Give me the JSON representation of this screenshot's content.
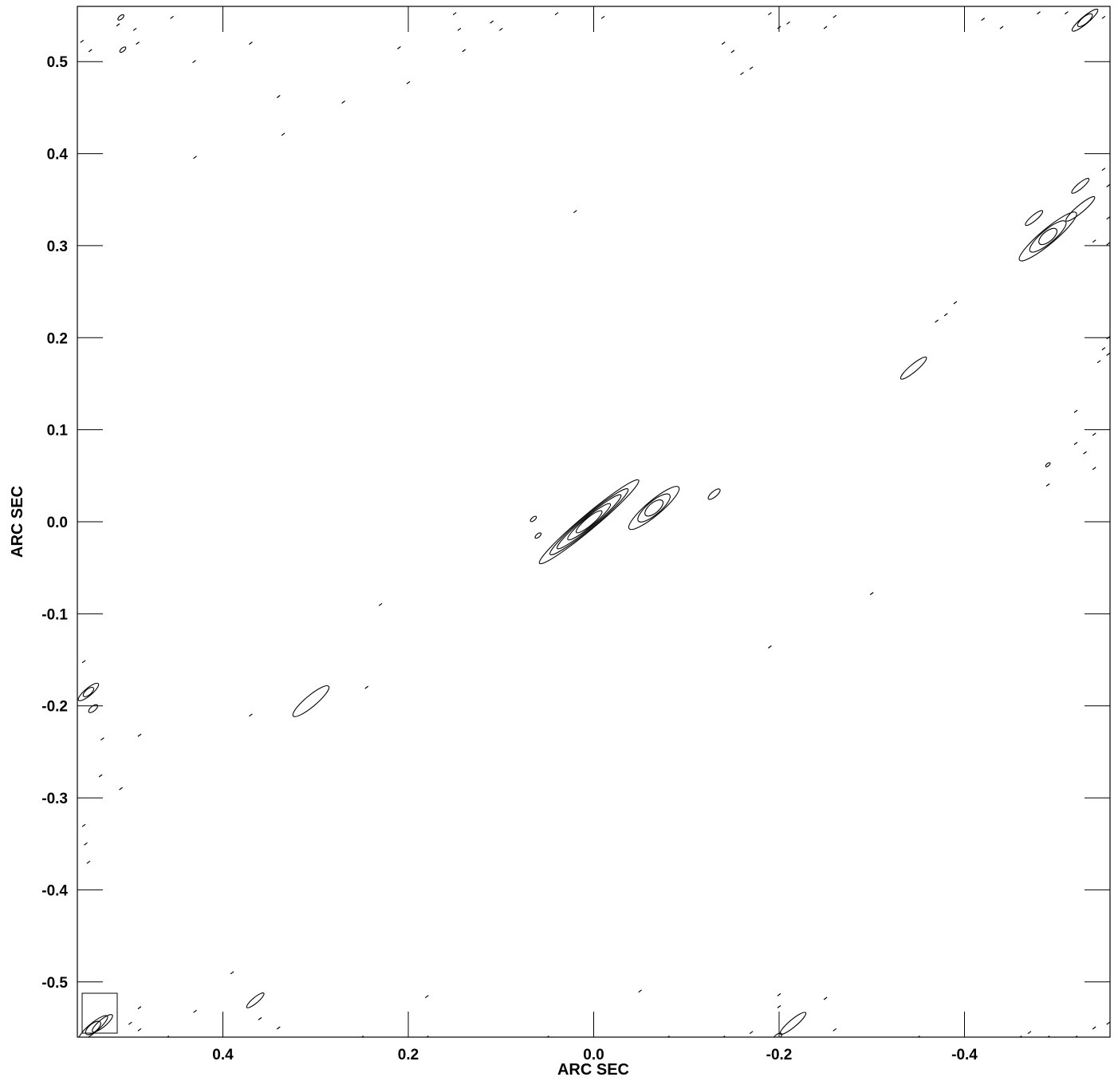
{
  "chart_data": {
    "type": "contour",
    "xlabel": "ARC SEC",
    "ylabel": "ARC SEC",
    "xlim": [
      0.557,
      -0.557
    ],
    "ylim": [
      -0.56,
      0.56
    ],
    "x_ticks": [
      0.4,
      0.2,
      0.0,
      -0.2,
      -0.4
    ],
    "x_tick_labels": [
      "0.4",
      "0.2",
      "0.0",
      "-0.2",
      "-0.4"
    ],
    "y_ticks": [
      0.5,
      0.4,
      0.3,
      0.2,
      0.1,
      0.0,
      -0.1,
      -0.2,
      -0.3,
      -0.4,
      -0.5
    ],
    "y_tick_labels": [
      "0.5",
      "0.4",
      "0.3",
      "0.2",
      "0.1",
      "0.0",
      "-0.1",
      "-0.2",
      "-0.3",
      "-0.4",
      "-0.5"
    ],
    "grid": false,
    "legend": "none",
    "line_color": "#000000",
    "features": [
      {
        "x": 0.005,
        "y": 0.0,
        "sizes": [
          0.07,
          0.055,
          0.045,
          0.03,
          0.018
        ],
        "width": 0.008,
        "angle": 40
      },
      {
        "x": -0.065,
        "y": 0.015,
        "sizes": [
          0.035,
          0.022,
          0.012
        ],
        "width": 0.008,
        "angle": 40
      },
      {
        "x": -0.13,
        "y": 0.03,
        "sizes": [
          0.008
        ],
        "width": 0.003,
        "angle": 40
      },
      {
        "x": 0.065,
        "y": 0.003,
        "sizes": [
          0.004
        ],
        "width": 0.003,
        "angle": 40
      },
      {
        "x": 0.06,
        "y": -0.015,
        "sizes": [
          0.004
        ],
        "width": 0.003,
        "angle": 40
      },
      {
        "x": 0.305,
        "y": -0.195,
        "sizes": [
          0.025
        ],
        "width": 0.006,
        "angle": 40
      },
      {
        "x": -0.345,
        "y": 0.167,
        "sizes": [
          0.018
        ],
        "width": 0.004,
        "angle": 40
      },
      {
        "x": -0.49,
        "y": 0.31,
        "sizes": [
          0.04,
          0.025,
          0.012
        ],
        "width": 0.008,
        "angle": 40
      },
      {
        "x": -0.475,
        "y": 0.33,
        "sizes": [
          0.012
        ],
        "width": 0.003,
        "angle": 40
      },
      {
        "x": -0.525,
        "y": 0.34,
        "sizes": [
          0.02
        ],
        "width": 0.004,
        "angle": 40
      },
      {
        "x": -0.525,
        "y": 0.365,
        "sizes": [
          0.012
        ],
        "width": 0.003,
        "angle": 40
      },
      {
        "x": -0.53,
        "y": 0.545,
        "sizes": [
          0.018,
          0.01
        ],
        "width": 0.004,
        "angle": 40
      },
      {
        "x": 0.545,
        "y": -0.185,
        "sizes": [
          0.014,
          0.007
        ],
        "width": 0.004,
        "angle": 40
      },
      {
        "x": 0.54,
        "y": -0.203,
        "sizes": [
          0.006
        ],
        "width": 0.003,
        "angle": 40
      },
      {
        "x": 0.365,
        "y": -0.52,
        "sizes": [
          0.012
        ],
        "width": 0.003,
        "angle": 40
      },
      {
        "x": -0.215,
        "y": -0.545,
        "sizes": [
          0.018
        ],
        "width": 0.004,
        "angle": 40
      },
      {
        "x": -0.198,
        "y": -0.56,
        "sizes": [
          0.006
        ],
        "width": 0.003,
        "angle": 40
      },
      {
        "x": 0.508,
        "y": 0.513,
        "sizes": [
          0.004
        ],
        "width": 0.002,
        "angle": 40
      },
      {
        "x": 0.51,
        "y": 0.548,
        "sizes": [
          0.004
        ],
        "width": 0.002,
        "angle": 40
      },
      {
        "x": -0.49,
        "y": 0.062,
        "sizes": [
          0.003
        ],
        "width": 0.002,
        "angle": 40
      },
      {
        "x": 0.54,
        "y": -0.55,
        "sizes": [
          0.02,
          0.01
        ],
        "width": 0.005,
        "angle": 40
      },
      {
        "x": 0.53,
        "y": -0.545,
        "sizes": [
          0.014
        ],
        "width": 0.004,
        "angle": 40
      }
    ],
    "speckles": [
      [
        0.552,
        0.522
      ],
      [
        0.543,
        0.512
      ],
      [
        0.513,
        0.54
      ],
      [
        0.495,
        0.535
      ],
      [
        0.492,
        0.52
      ],
      [
        0.455,
        0.548
      ],
      [
        0.431,
        0.5
      ],
      [
        0.37,
        0.52
      ],
      [
        0.34,
        0.462
      ],
      [
        0.335,
        0.421
      ],
      [
        0.43,
        0.396
      ],
      [
        0.27,
        0.456
      ],
      [
        0.2,
        0.477
      ],
      [
        0.21,
        0.515
      ],
      [
        0.15,
        0.552
      ],
      [
        0.145,
        0.535
      ],
      [
        0.14,
        0.512
      ],
      [
        0.11,
        0.543
      ],
      [
        0.1,
        0.535
      ],
      [
        0.04,
        0.552
      ],
      [
        -0.01,
        0.548
      ],
      [
        -0.19,
        0.552
      ],
      [
        -0.2,
        0.537
      ],
      [
        -0.26,
        0.549
      ],
      [
        -0.25,
        0.537
      ],
      [
        -0.14,
        0.52
      ],
      [
        -0.15,
        0.511
      ],
      [
        -0.16,
        0.487
      ],
      [
        -0.17,
        0.493
      ],
      [
        -0.21,
        0.542
      ],
      [
        -0.42,
        0.546
      ],
      [
        -0.44,
        0.537
      ],
      [
        -0.48,
        0.553
      ],
      [
        -0.51,
        0.553
      ],
      [
        -0.55,
        0.548
      ],
      [
        0.02,
        0.337
      ],
      [
        -0.37,
        0.218
      ],
      [
        -0.38,
        0.225
      ],
      [
        -0.39,
        0.238
      ],
      [
        -0.55,
        0.383
      ],
      [
        -0.555,
        0.365
      ],
      [
        -0.555,
        0.33
      ],
      [
        -0.54,
        0.305
      ],
      [
        -0.555,
        0.302
      ],
      [
        -0.52,
        0.12
      ],
      [
        -0.52,
        0.085
      ],
      [
        -0.53,
        0.075
      ],
      [
        -0.54,
        0.095
      ],
      [
        -0.555,
        0.2
      ],
      [
        -0.55,
        0.188
      ],
      [
        -0.545,
        0.174
      ],
      [
        -0.555,
        0.182
      ],
      [
        -0.54,
        0.058
      ],
      [
        -0.49,
        0.04
      ],
      [
        -0.3,
        -0.078
      ],
      [
        -0.19,
        -0.136
      ],
      [
        0.23,
        -0.09
      ],
      [
        0.245,
        -0.18
      ],
      [
        0.37,
        -0.21
      ],
      [
        0.49,
        -0.232
      ],
      [
        0.53,
        -0.236
      ],
      [
        0.532,
        -0.276
      ],
      [
        0.51,
        -0.29
      ],
      [
        0.55,
        -0.33
      ],
      [
        0.548,
        -0.35
      ],
      [
        0.545,
        -0.37
      ],
      [
        0.55,
        -0.152
      ],
      [
        0.39,
        -0.49
      ],
      [
        0.18,
        -0.516
      ],
      [
        0.43,
        -0.532
      ],
      [
        0.49,
        -0.528
      ],
      [
        0.5,
        -0.545
      ],
      [
        0.49,
        -0.552
      ],
      [
        0.36,
        -0.54
      ],
      [
        0.34,
        -0.55
      ],
      [
        0.46,
        -0.56
      ],
      [
        0.4,
        -0.562
      ],
      [
        0.25,
        -0.56
      ],
      [
        0.18,
        -0.56
      ],
      [
        0.12,
        -0.562
      ],
      [
        0.05,
        -0.56
      ],
      [
        -0.05,
        -0.51
      ],
      [
        -0.2,
        -0.514
      ],
      [
        -0.2,
        -0.527
      ],
      [
        -0.25,
        -0.518
      ],
      [
        -0.26,
        -0.552
      ],
      [
        -0.14,
        -0.56
      ],
      [
        -0.08,
        -0.56
      ],
      [
        -0.03,
        -0.562
      ],
      [
        -0.17,
        -0.555
      ],
      [
        -0.18,
        -0.562
      ],
      [
        -0.3,
        -0.562
      ],
      [
        -0.35,
        -0.56
      ],
      [
        -0.42,
        -0.562
      ],
      [
        -0.46,
        -0.56
      ],
      [
        -0.47,
        -0.555
      ],
      [
        -0.49,
        -0.56
      ],
      [
        -0.52,
        -0.56
      ],
      [
        -0.54,
        -0.55
      ],
      [
        -0.555,
        -0.545
      ]
    ]
  }
}
